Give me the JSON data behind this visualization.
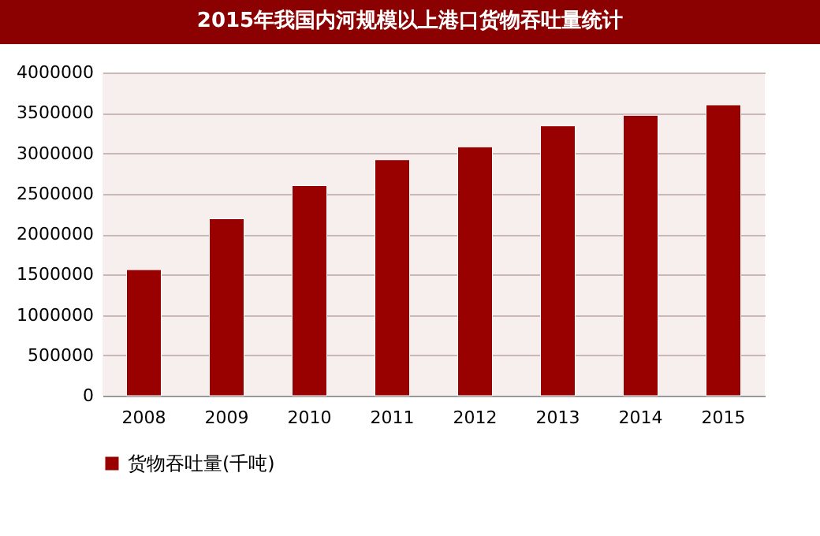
{
  "chart_data": {
    "type": "bar",
    "title": "2015年我国内河规模以上港口货物吞吐量统计",
    "categories": [
      "2008",
      "2009",
      "2010",
      "2011",
      "2012",
      "2013",
      "2014",
      "2015"
    ],
    "series": [
      {
        "name": "货物吞吐量(千吨)",
        "color": "#990000",
        "values": [
          1560000,
          2190000,
          2600000,
          2920000,
          3080000,
          3340000,
          3470000,
          3600000
        ]
      }
    ],
    "ylim": [
      0,
      4000000
    ],
    "yticks": [
      0,
      500000,
      1000000,
      1500000,
      2000000,
      2500000,
      3000000,
      3500000,
      4000000
    ],
    "grid": "y",
    "legend": "bottom"
  }
}
